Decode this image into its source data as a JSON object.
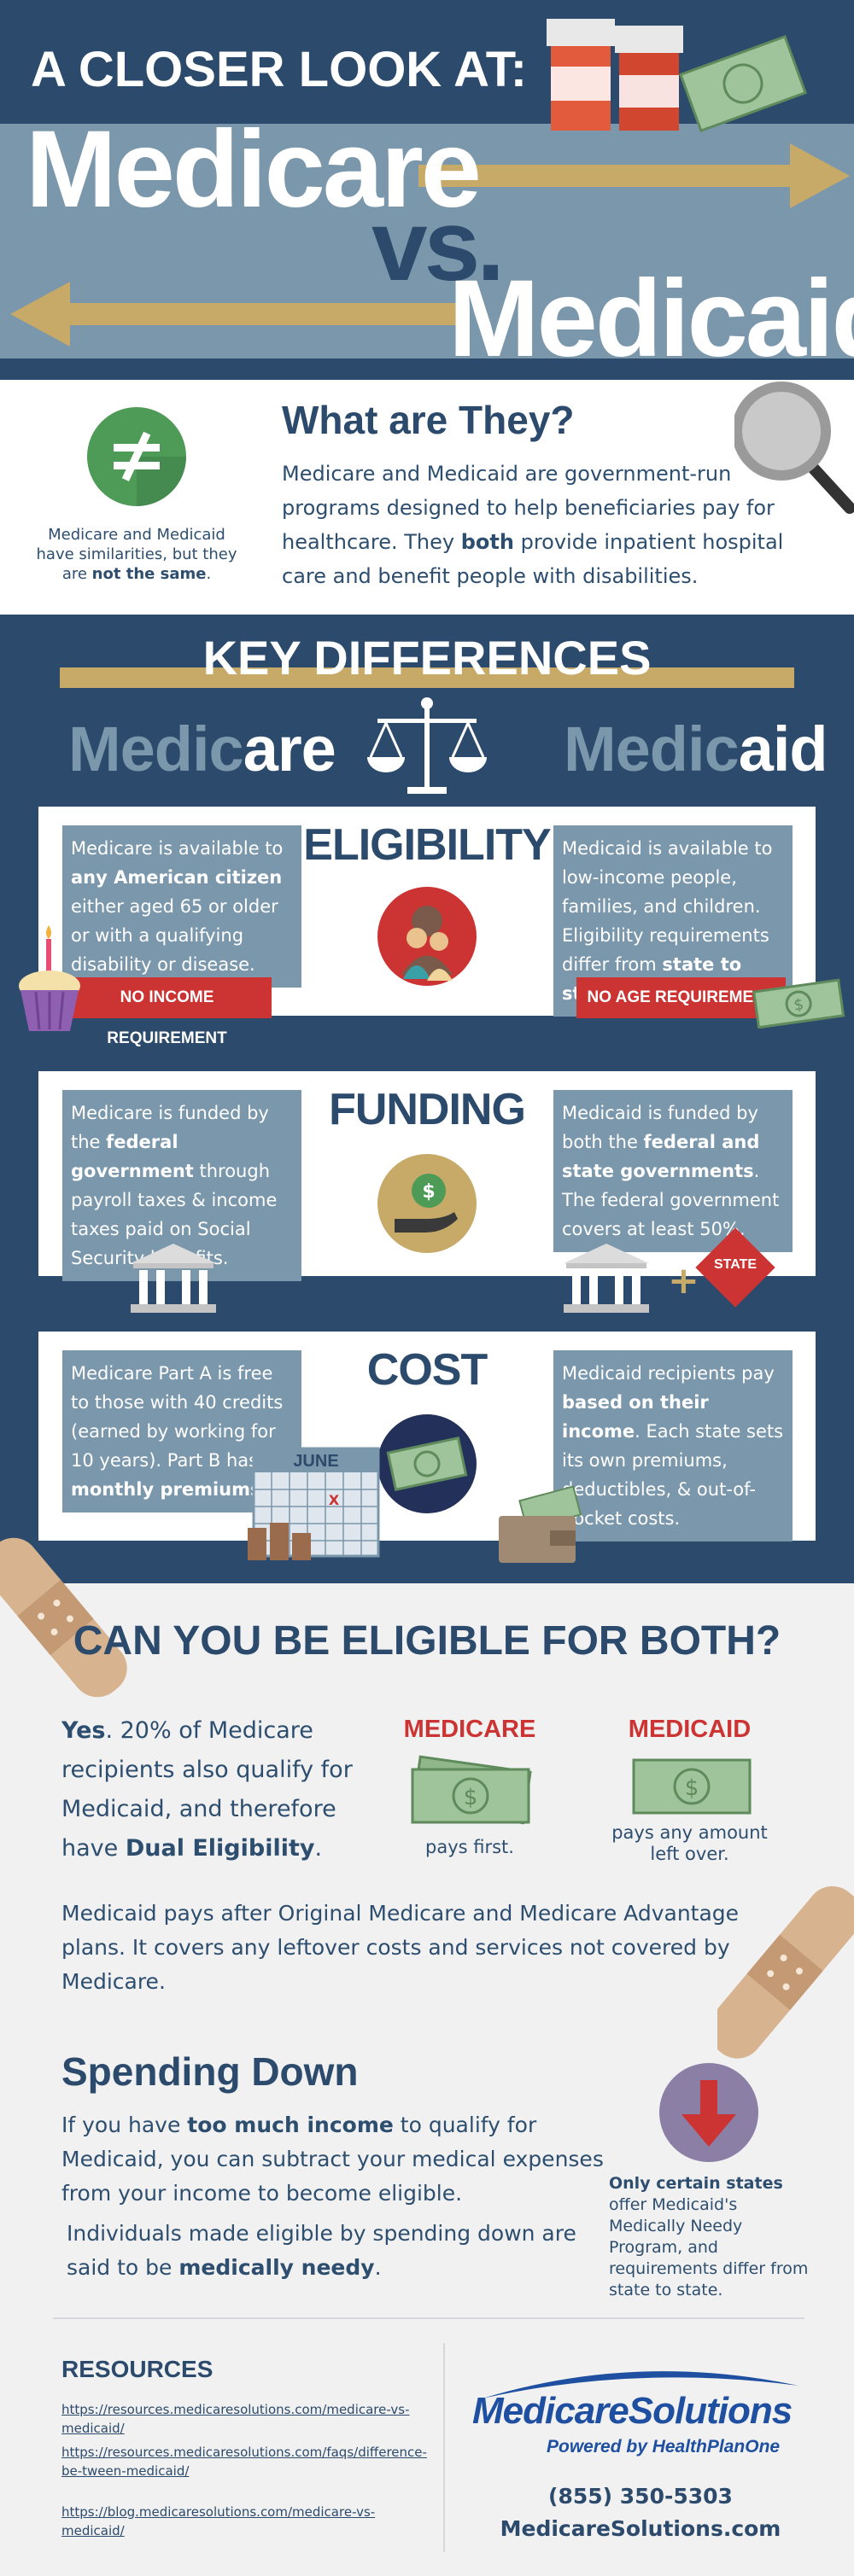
{
  "header": {
    "kicker": "A CLOSER LOOK AT:",
    "left": "Medicare",
    "vs": "vs.",
    "right": "Medicaid"
  },
  "what": {
    "title": "What are They?",
    "body_1": "Medicare and Medicaid are government-run programs designed to help beneficiaries pay for healthcare. They ",
    "body_bold": "both",
    "body_2": " provide inpatient hospital care and benefit people with disabilities.",
    "side_1": "Medicare and Medicaid have similarities, but they are ",
    "side_bold": "not the same",
    "side_2": "."
  },
  "differences": {
    "title": "KEY DIFFERENCES",
    "left_head_a": "Medic",
    "left_head_b": "are",
    "right_head_a": "Medic",
    "right_head_b": "aid",
    "eligibility": {
      "title": "ELIGIBILITY",
      "left_1": "Medicare is available to ",
      "left_bold": "any American citizen",
      "left_2": " either aged 65 or older or with a qualifying disability or disease.",
      "right_1": "Medicaid is available to low-income people, families, and children. Eligibility requirements differ from ",
      "right_bold": "state to state",
      "right_2": ".",
      "left_ribbon": "NO INCOME REQUIREMENT",
      "right_ribbon": "NO AGE REQUIREMENT"
    },
    "funding": {
      "title": "FUNDING",
      "left_1": "Medicare is funded by the ",
      "left_bold": "federal government",
      "left_2": " through payroll taxes & income taxes paid on Social Security benefits.",
      "right_1": "Medicaid is funded by both the ",
      "right_bold": "federal and state governments",
      "right_2": ". The federal government covers at least 50%.",
      "state_tag": "STATE",
      "plus": "+",
      "dollar": "$"
    },
    "cost": {
      "title": "COST",
      "left_1": "Medicare Part A is free to those with 40 credits (earned by working for 10 years). Part B has ",
      "left_bold": "monthly premiums",
      "left_2": ".",
      "right_1": "Medicaid recipients pay ",
      "right_bold": "based on their income",
      "right_2": ". Each state sets its own premiums, deductibles, & out-of-pocket costs.",
      "calendar_month": "JUNE"
    }
  },
  "both": {
    "title": "CAN YOU BE ELIGIBLE FOR BOTH?",
    "yes_bold": "Yes",
    "yes_1": ". 20% of Medicare recipients also qualify for Medicaid, and therefore have ",
    "yes_bold2": "Dual Eligibility",
    "yes_2": ".",
    "medicare_label": "MEDICARE",
    "medicare_note": "pays first.",
    "medicaid_label": "MEDICAID",
    "medicaid_note": "pays any amount left over.",
    "paragraph": "Medicaid pays after Original Medicare and Medicare Advantage plans. It covers any leftover costs and services not covered by Medicare."
  },
  "spending": {
    "title": "Spending Down",
    "p1_1": "If you have ",
    "p1_bold": "too much income",
    "p1_2": " to qualify for Medicaid, you can subtract your medical expenses from your income to become eligible.",
    "p2_1": "Individuals made eligible by spending down are said to be ",
    "p2_bold": "medically needy",
    "p2_2": ".",
    "note_bold": "Only certain states",
    "note_rest": " offer Medicaid's Medically Needy Program, and requirements differ from state to state."
  },
  "resources": {
    "title": "RESOURCES",
    "links": [
      "https://resources.medicaresolutions.com/medicare-vs-medicaid/",
      "https://resources.medicaresolutions.com/faqs/difference-be-tween-medicaid/",
      "https://blog.medicaresolutions.com/medicare-vs-medicaid/"
    ]
  },
  "brand": {
    "name": "MedicareSolutions",
    "tagline": "Powered by HealthPlanOne",
    "phone": "(855) 350-5303",
    "site": "MedicareSolutions.com"
  },
  "colors": {
    "navy": "#2c4a6b",
    "steel": "#7b97ab",
    "gold": "#c7aa68",
    "red": "#cc3333",
    "money_green": "#9fc39a"
  },
  "icons": [
    "not-equal-icon",
    "magnifier-icon",
    "scales-icon",
    "family-icon",
    "cupcake-icon",
    "money-hand-icon",
    "bank-icon",
    "state-diamond-icon",
    "cash-icon",
    "calendar-icon",
    "coins-icon",
    "wallet-icon",
    "down-arrow-icon",
    "bandage-icon",
    "pill-bottle-icon"
  ]
}
